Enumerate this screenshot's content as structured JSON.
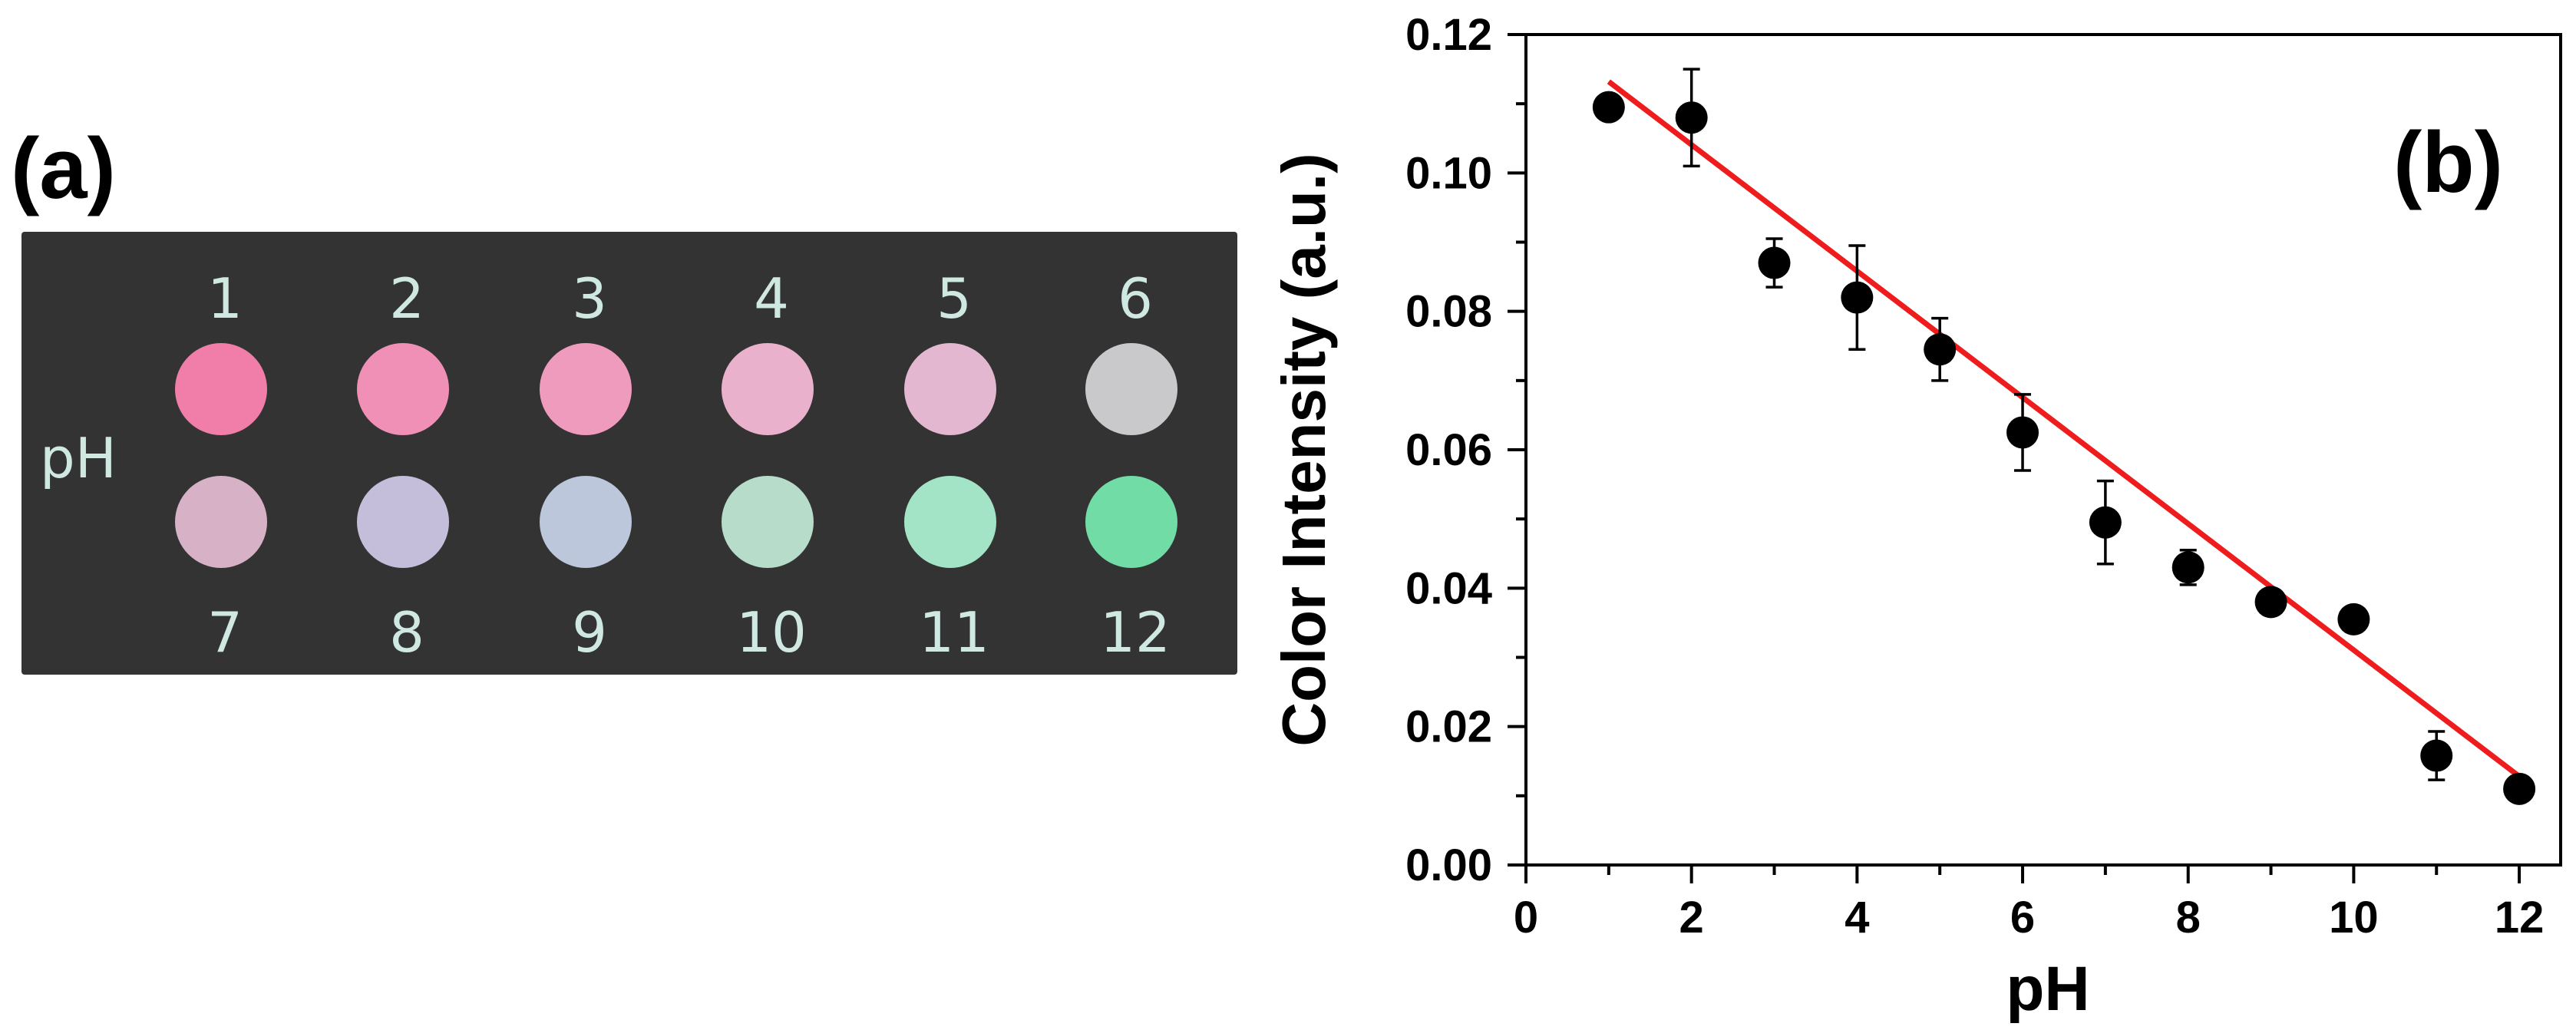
{
  "panel_a": {
    "label": "(a)",
    "side_label": "pH",
    "spots": [
      {
        "num": "1",
        "color": "#f07ea8"
      },
      {
        "num": "2",
        "color": "#f190b6"
      },
      {
        "num": "3",
        "color": "#ef9bbe"
      },
      {
        "num": "4",
        "color": "#e9b1cc"
      },
      {
        "num": "5",
        "color": "#e2b7cf"
      },
      {
        "num": "6",
        "color": "#c9c9cc"
      },
      {
        "num": "7",
        "color": "#d7b2c6"
      },
      {
        "num": "8",
        "color": "#c4bedb"
      },
      {
        "num": "9",
        "color": "#bcc7dc"
      },
      {
        "num": "10",
        "color": "#b7dcca"
      },
      {
        "num": "11",
        "color": "#a4e4c6"
      },
      {
        "num": "12",
        "color": "#72dca6"
      }
    ],
    "plate_color": "#333333",
    "number_color": "#cfe8e2"
  },
  "chart_data": {
    "type": "scatter",
    "panel_label": "(b)",
    "title": "",
    "xlabel": "pH",
    "ylabel": "Color Intensity (a.u.)",
    "xlim": [
      0,
      12.5
    ],
    "ylim": [
      0,
      0.12
    ],
    "xticks": [
      0,
      2,
      4,
      6,
      8,
      10,
      12
    ],
    "xtick_labels": [
      "0",
      "2",
      "4",
      "6",
      "8",
      "10",
      "12"
    ],
    "yticks": [
      0,
      0.02,
      0.04,
      0.06,
      0.08,
      0.1,
      0.12
    ],
    "ytick_labels": [
      "0.00",
      "0.02",
      "0.04",
      "0.06",
      "0.08",
      "0.10",
      "0.12"
    ],
    "series": [
      {
        "x": [
          1,
          2,
          3,
          4,
          5,
          6,
          7,
          8,
          9,
          10,
          11,
          12
        ],
        "y": [
          0.1095,
          0.108,
          0.087,
          0.082,
          0.0745,
          0.0625,
          0.0495,
          0.043,
          0.038,
          0.0355,
          0.0158,
          0.011
        ],
        "yerr": [
          0.0,
          0.007,
          0.0035,
          0.0075,
          0.0045,
          0.0055,
          0.006,
          0.0025,
          0.0,
          0.0,
          0.0035,
          0.0
        ],
        "color": "#000000"
      }
    ],
    "fit_line": {
      "x": [
        1,
        12
      ],
      "y": [
        0.1132,
        0.0128
      ],
      "color": "#ee1c1c"
    },
    "grid": false,
    "legend": "none"
  }
}
